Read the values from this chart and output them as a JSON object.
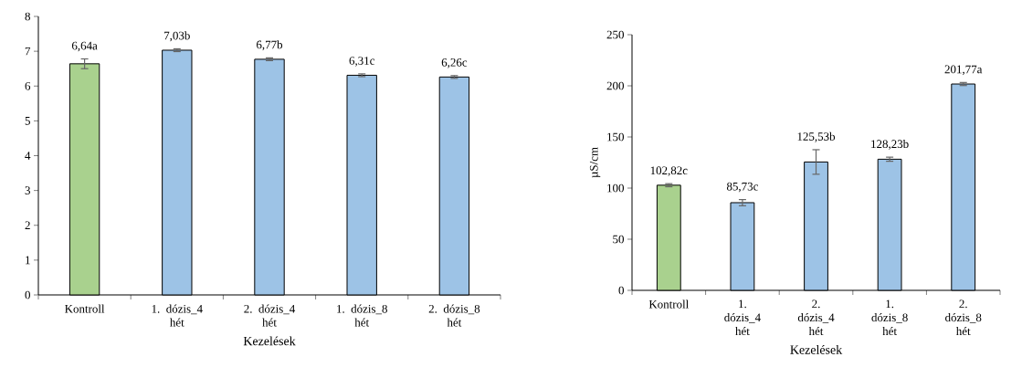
{
  "chart_data": [
    {
      "type": "bar",
      "xlabel": "Kezelések",
      "categories": [
        "Kontroll",
        "1. dózis_4 hét",
        "2. dózis_4 hét",
        "1. dózis_8 hét",
        "2. dózis_8 hét"
      ],
      "values": [
        6.64,
        7.03,
        6.77,
        6.31,
        6.26
      ],
      "errors": [
        0.14,
        0.04,
        0.04,
        0.04,
        0.04
      ],
      "value_labels": [
        "6,64a",
        "7,03b",
        "6,77b",
        "6,31c",
        "6,26c"
      ],
      "colors": [
        "#a9d18e",
        "#9dc3e6",
        "#9dc3e6",
        "#9dc3e6",
        "#9dc3e6"
      ],
      "ylim": [
        0,
        8
      ],
      "yticks": [
        0,
        1,
        2,
        3,
        4,
        5,
        6,
        7,
        8
      ]
    },
    {
      "type": "bar",
      "xlabel": "Kezelések",
      "ylabel": "µS/cm",
      "categories": [
        "Kontroll",
        "1. dózis_4 hét",
        "2. dózis_4 hét",
        "1. dózis_8 hét",
        "2. dózis_8 hét"
      ],
      "values": [
        102.82,
        85.73,
        125.53,
        128.23,
        201.77
      ],
      "errors": [
        1.5,
        3,
        12,
        2,
        1.5
      ],
      "value_labels": [
        "102,82c",
        "85,73c",
        "125,53b",
        "128,23b",
        "201,77a"
      ],
      "colors": [
        "#a9d18e",
        "#9dc3e6",
        "#9dc3e6",
        "#9dc3e6",
        "#9dc3e6"
      ],
      "ylim": [
        0,
        250
      ],
      "yticks": [
        0,
        50,
        100,
        150,
        200,
        250
      ]
    }
  ]
}
